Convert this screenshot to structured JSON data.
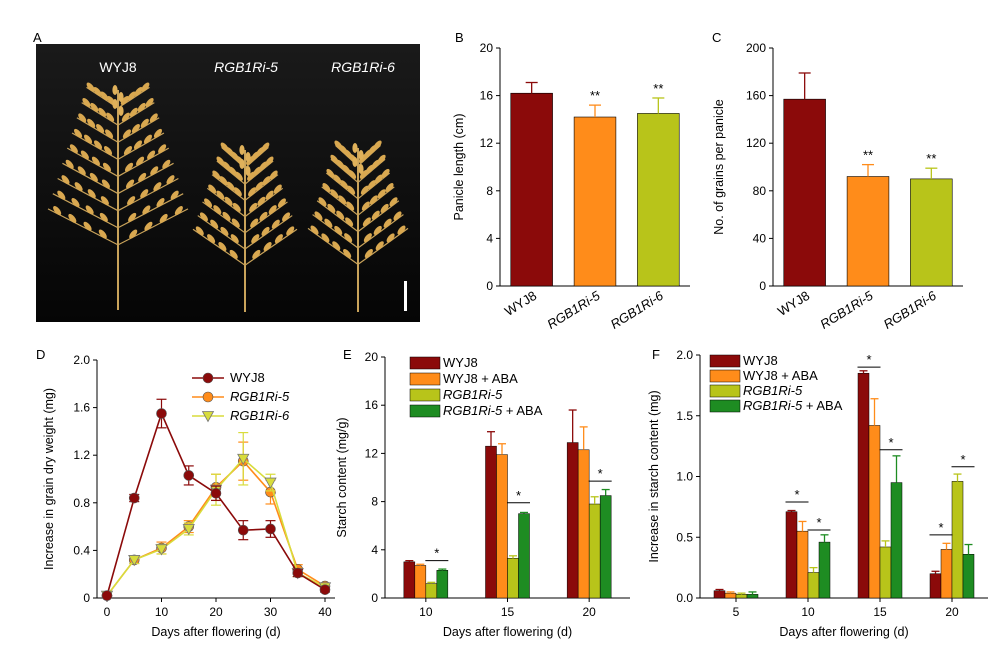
{
  "panel_a": {
    "letter": "A",
    "labels": [
      "WYJ8",
      "RGB1Ri-5",
      "RGB1Ri-6"
    ]
  },
  "chart_data": [
    {
      "panel": "B",
      "type": "bar",
      "categories": [
        "WYJ8",
        "RGB1Ri-5",
        "RGB1Ri-6"
      ],
      "values": [
        16.2,
        14.2,
        14.5
      ],
      "errors": [
        0.9,
        1.0,
        1.3
      ],
      "significance": [
        "",
        "**",
        "**"
      ],
      "colors": [
        "#8b0a0a",
        "#ff8c1a",
        "#b8c41a"
      ],
      "ylabel": "Panicle length (cm)",
      "ylim": [
        0,
        20
      ],
      "yticks": [
        0,
        4,
        8,
        12,
        16,
        20
      ]
    },
    {
      "panel": "C",
      "type": "bar",
      "categories": [
        "WYJ8",
        "RGB1Ri-5",
        "RGB1Ri-6"
      ],
      "values": [
        157,
        92,
        90
      ],
      "errors": [
        22,
        10,
        9
      ],
      "significance": [
        "",
        "**",
        "**"
      ],
      "colors": [
        "#8b0a0a",
        "#ff8c1a",
        "#b8c41a"
      ],
      "ylabel": "No. of grains per panicle",
      "ylim": [
        0,
        200
      ],
      "yticks": [
        0,
        40,
        80,
        120,
        160,
        200
      ]
    },
    {
      "panel": "D",
      "type": "line",
      "x": [
        0,
        5,
        10,
        15,
        20,
        25,
        30,
        35,
        40
      ],
      "series": [
        {
          "name": "WYJ8",
          "values": [
            0.02,
            0.84,
            1.55,
            1.03,
            0.88,
            0.57,
            0.58,
            0.21,
            0.07
          ],
          "errors": [
            0.01,
            0.03,
            0.12,
            0.08,
            0.06,
            0.08,
            0.07,
            0.03,
            0.02
          ],
          "color": "#8b0a0a",
          "marker": "circle"
        },
        {
          "name": "RGB1Ri-5",
          "values": [
            0.02,
            0.32,
            0.42,
            0.6,
            0.93,
            1.15,
            0.89,
            0.24,
            0.1
          ],
          "errors": [
            0.01,
            0.03,
            0.05,
            0.05,
            0.11,
            0.16,
            0.1,
            0.04,
            0.02
          ],
          "color": "#ff8c1a",
          "marker": "circle"
        },
        {
          "name": "RGB1Ri-6",
          "values": [
            0.02,
            0.32,
            0.41,
            0.58,
            0.91,
            1.17,
            0.97,
            0.21,
            0.09
          ],
          "errors": [
            0.01,
            0.03,
            0.04,
            0.05,
            0.13,
            0.22,
            0.07,
            0.03,
            0.02
          ],
          "color": "#d8dc3c",
          "marker": "triangle-down"
        }
      ],
      "xlabel": "Days after flowering (d)",
      "ylabel": "Increase in grain dry weight (mg)",
      "xlim": [
        0,
        40
      ],
      "xticks": [
        0,
        10,
        20,
        30,
        40
      ],
      "ylim": [
        0,
        2.0
      ],
      "yticks": [
        "0",
        "0.4",
        "0.8",
        "1.2",
        "1.6",
        "2.0"
      ]
    },
    {
      "panel": "E",
      "type": "bar",
      "categories": [
        "10",
        "15",
        "20"
      ],
      "series": [
        {
          "name": "WYJ8",
          "values": [
            3.0,
            12.6,
            12.9
          ],
          "errors": [
            0.1,
            1.2,
            2.7
          ],
          "color": "#8b0a0a"
        },
        {
          "name": "WYJ8 + ABA",
          "values": [
            2.7,
            11.9,
            12.3
          ],
          "errors": [
            0.1,
            0.9,
            1.9
          ],
          "color": "#ff8c1a"
        },
        {
          "name": "RGB1Ri-5",
          "values": [
            1.2,
            3.3,
            7.8
          ],
          "errors": [
            0.1,
            0.2,
            0.6
          ],
          "color": "#b8c41a"
        },
        {
          "name": "RGB1Ri-5 + ABA",
          "values": [
            2.3,
            7.0,
            8.5
          ],
          "errors": [
            0.1,
            0.1,
            0.5
          ],
          "color": "#1e8c22"
        }
      ],
      "significance": [
        "*",
        "*",
        "*"
      ],
      "xlabel": "Days after flowering (d)",
      "ylabel": "Starch content (mg/g)",
      "ylim": [
        0,
        20
      ],
      "yticks": [
        0,
        4,
        8,
        12,
        16,
        20
      ]
    },
    {
      "panel": "F",
      "type": "bar",
      "categories": [
        "5",
        "10",
        "15",
        "20"
      ],
      "series": [
        {
          "name": "WYJ8",
          "values": [
            0.06,
            0.71,
            1.85,
            0.2
          ],
          "errors": [
            0.01,
            0.01,
            0.02,
            0.02
          ],
          "color": "#8b0a0a"
        },
        {
          "name": "WYJ8 + ABA",
          "values": [
            0.04,
            0.55,
            1.42,
            0.4
          ],
          "errors": [
            0.01,
            0.08,
            0.22,
            0.05
          ],
          "color": "#ff8c1a"
        },
        {
          "name": "RGB1Ri-5",
          "values": [
            0.03,
            0.21,
            0.42,
            0.96
          ],
          "errors": [
            0.01,
            0.04,
            0.05,
            0.06
          ],
          "color": "#b8c41a"
        },
        {
          "name": "RGB1Ri-5 + ABA",
          "values": [
            0.03,
            0.46,
            0.95,
            0.36
          ],
          "errors": [
            0.02,
            0.06,
            0.22,
            0.08
          ],
          "color": "#1e8c22"
        }
      ],
      "significance": [
        "",
        "*",
        "*",
        "*"
      ],
      "xlabel": "Days after flowering (d)",
      "ylabel": "Increase in starch content (mg)",
      "ylim": [
        0,
        2.0
      ],
      "yticks": [
        "0.0",
        "0.5",
        "1.0",
        "1.5",
        "2.0"
      ]
    }
  ]
}
